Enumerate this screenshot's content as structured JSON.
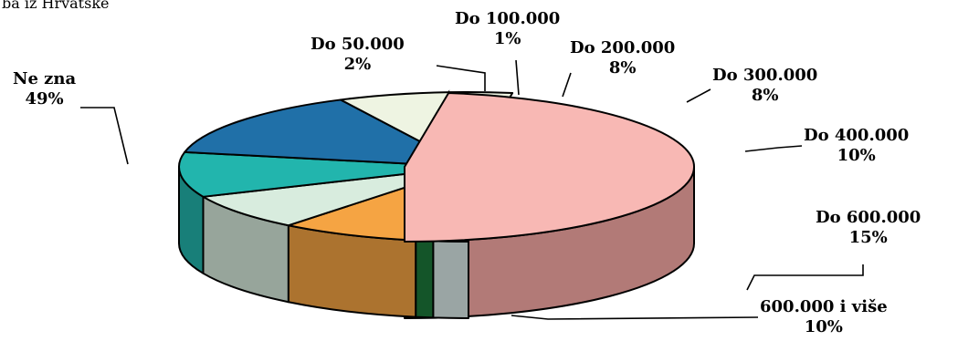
{
  "subtitle": "ba iz Hrvatske",
  "chart_data": {
    "type": "pie",
    "three_d": true,
    "exploded": [
      "Ne zna"
    ],
    "categories": [
      "Do 50.000",
      "Do 100.000",
      "Do 200.000",
      "Do 300.000",
      "Do 400.000",
      "Do 600.000",
      "600.000 i više",
      "Ne zna"
    ],
    "values": [
      2,
      1,
      8,
      8,
      10,
      15,
      10,
      49
    ],
    "value_labels": [
      "2%",
      "1%",
      "8%",
      "8%",
      "10%",
      "15%",
      "10%",
      "49%"
    ],
    "colors": {
      "Do 50.000": "#dcecea",
      "Do 100.000": "#1d7a3a",
      "Do 200.000": "#f5a443",
      "Do 300.000": "#d8ecde",
      "Do 400.000": "#22b5ad",
      "Do 600.000": "#2070a8",
      "600.000 i više": "#eef4e2",
      "Ne zna": "#f8b8b4"
    },
    "side_colors": {
      "Do 600.000": "#0c4a72",
      "600.000 i više": "#a9ae9a",
      "Ne zna": "#b27a77"
    }
  }
}
